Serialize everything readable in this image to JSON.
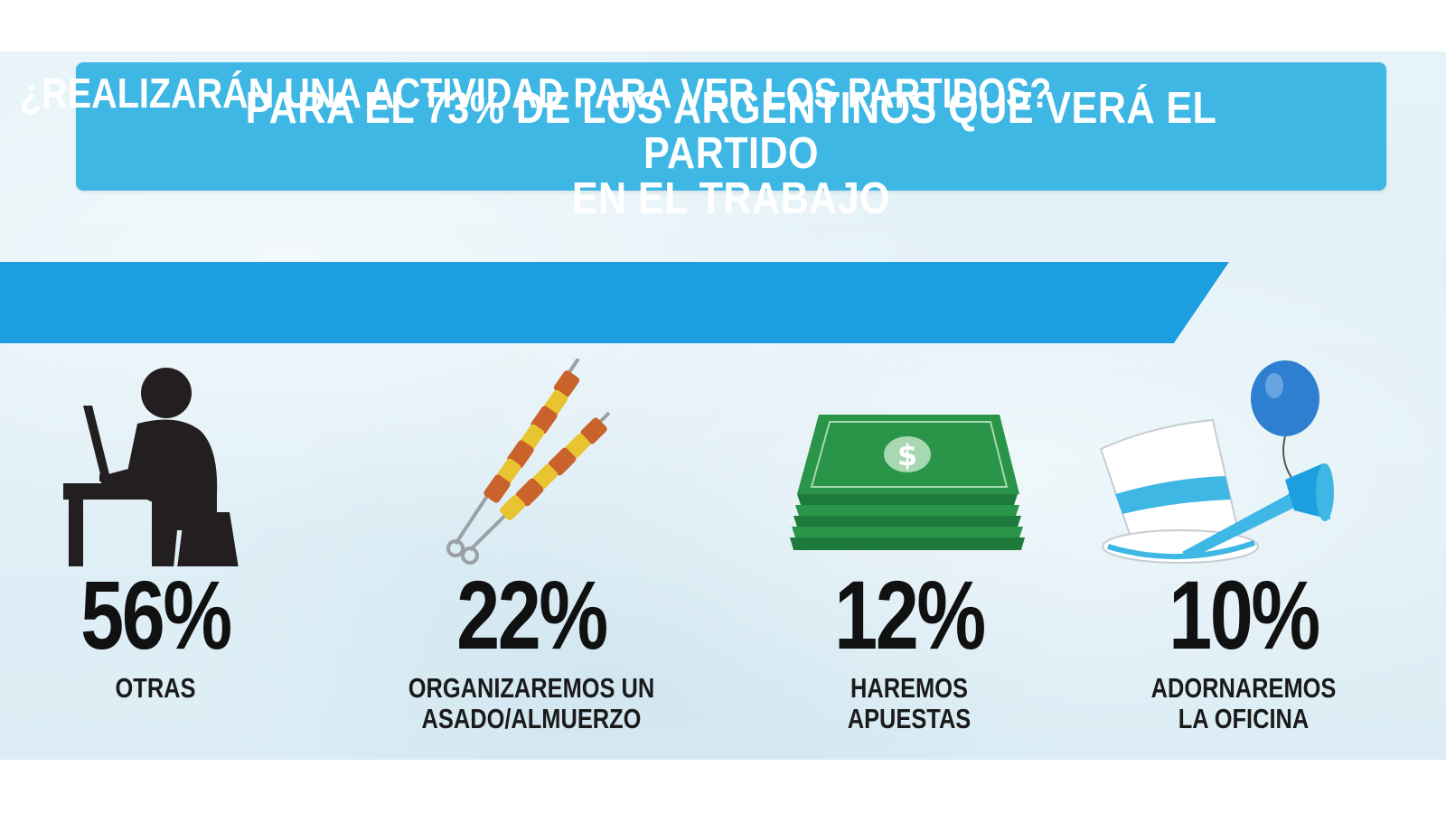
{
  "header": {
    "line1": "PARA EL 73% DE LOS ARGENTINOS QUE VERÁ EL PARTIDO",
    "line2": "EN EL TRABAJO"
  },
  "question": "¿REALIZARÁN UNA ACTIVIDAD PARA VER LOS PARTIDOS?",
  "stats": [
    {
      "percent": "56%",
      "label_line1": "OTRAS",
      "label_line2": "",
      "icon": "person-at-laptop-icon"
    },
    {
      "percent": "22%",
      "label_line1": "ORGANIZAREMOS UN",
      "label_line2": "ASADO/ALMUERZO",
      "icon": "skewers-icon"
    },
    {
      "percent": "12%",
      "label_line1": "HAREMOS",
      "label_line2": "APUESTAS",
      "icon": "money-stack-icon"
    },
    {
      "percent": "10%",
      "label_line1": "ADORNAREMOS",
      "label_line2": "LA OFICINA",
      "icon": "party-hat-balloon-horn-icon"
    }
  ],
  "colors": {
    "title_box": "#3eb7e4",
    "question_band": "#1d9fdf",
    "text_dark": "#111111",
    "money_green": "#1e7a3a",
    "balloon_blue": "#2f7fd0"
  },
  "money_symbol": "$"
}
